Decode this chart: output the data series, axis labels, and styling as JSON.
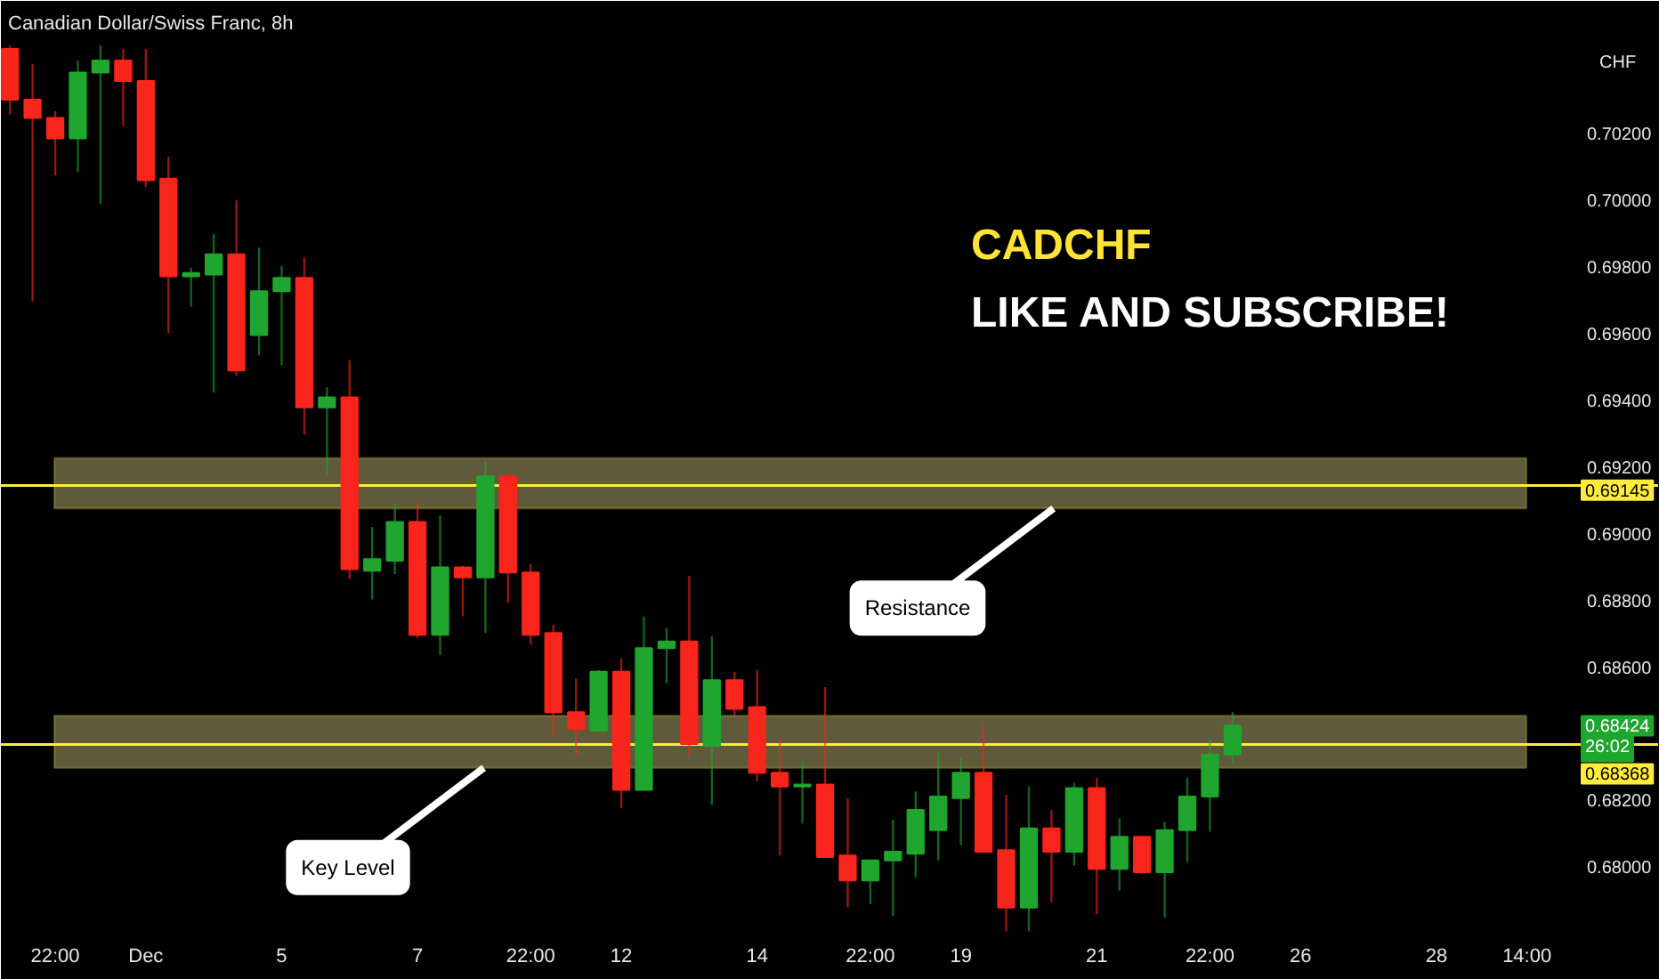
{
  "chart_data": {
    "type": "candlestick",
    "title": "Canadian Dollar/Swiss Franc, 8h",
    "ylabel": "CHF",
    "categories": [
      null,
      null,
      "22:00",
      null,
      null,
      null,
      "Dec",
      null,
      null,
      null,
      null,
      null,
      "5",
      null,
      null,
      null,
      null,
      null,
      "7",
      null,
      null,
      null,
      null,
      "22:00",
      null,
      null,
      null,
      "12",
      null,
      null,
      null,
      null,
      null,
      "14",
      null,
      null,
      null,
      null,
      "22:00",
      null,
      null,
      null,
      "19",
      null,
      null,
      null,
      null,
      null,
      "21",
      null,
      null,
      null,
      null,
      "22:00",
      null,
      null,
      null,
      "26",
      null,
      null,
      null,
      null,
      null,
      "28",
      null,
      null,
      null,
      "14:00"
    ],
    "ohlc": [
      [
        0.70454,
        0.70465,
        0.70257,
        0.70302
      ],
      [
        0.70302,
        0.70409,
        0.69697,
        0.70247
      ],
      [
        0.70247,
        0.70267,
        0.70075,
        0.70186
      ],
      [
        0.70186,
        0.70419,
        0.70085,
        0.70383
      ],
      [
        0.70383,
        0.70465,
        0.69989,
        0.70419
      ],
      [
        0.70419,
        0.70454,
        0.70222,
        0.70358
      ],
      [
        0.70358,
        0.70454,
        0.7004,
        0.7006
      ],
      [
        0.70065,
        0.70131,
        0.69601,
        0.69772
      ],
      [
        0.69772,
        0.69798,
        0.69681,
        0.69782
      ],
      [
        0.69777,
        0.69899,
        0.69424,
        0.69838
      ],
      [
        0.69838,
        0.7,
        0.69474,
        0.6949
      ],
      [
        0.69596,
        0.69858,
        0.69535,
        0.69727
      ],
      [
        0.69727,
        0.69803,
        0.69505,
        0.69767
      ],
      [
        0.69767,
        0.69828,
        0.69298,
        0.69379
      ],
      [
        0.69379,
        0.69439,
        0.69172,
        0.69409
      ],
      [
        0.69409,
        0.6952,
        0.68864,
        0.68894
      ],
      [
        0.68889,
        0.6902,
        0.68803,
        0.68924
      ],
      [
        0.68919,
        0.69091,
        0.68879,
        0.69035
      ],
      [
        0.69035,
        0.69091,
        0.68687,
        0.68697
      ],
      [
        0.68697,
        0.69055,
        0.68636,
        0.68899
      ],
      [
        0.68899,
        0.68904,
        0.68752,
        0.68869
      ],
      [
        0.68869,
        0.69217,
        0.68702,
        0.69172
      ],
      [
        0.69172,
        0.69182,
        0.68793,
        0.68884
      ],
      [
        0.68884,
        0.68909,
        0.68667,
        0.68697
      ],
      [
        0.68702,
        0.68727,
        0.68389,
        0.68465
      ],
      [
        0.68465,
        0.68566,
        0.68333,
        0.68414
      ],
      [
        0.68409,
        0.68591,
        0.68409,
        0.68586
      ],
      [
        0.68586,
        0.68626,
        0.68177,
        0.68232
      ],
      [
        0.68232,
        0.68752,
        0.68232,
        0.68657
      ],
      [
        0.68657,
        0.68717,
        0.68551,
        0.68677
      ],
      [
        0.68677,
        0.68874,
        0.68333,
        0.68369
      ],
      [
        0.68364,
        0.68692,
        0.68187,
        0.68561
      ],
      [
        0.68561,
        0.68586,
        0.68455,
        0.68475
      ],
      [
        0.6848,
        0.68591,
        0.68258,
        0.68283
      ],
      [
        0.68283,
        0.68384,
        0.68035,
        0.68242
      ],
      [
        0.68242,
        0.68313,
        0.68131,
        0.68248
      ],
      [
        0.68248,
        0.6854,
        0.6803,
        0.6803
      ],
      [
        0.68035,
        0.68207,
        0.67879,
        0.6796
      ],
      [
        0.6796,
        0.6802,
        0.67889,
        0.6802
      ],
      [
        0.6802,
        0.68142,
        0.67854,
        0.68046
      ],
      [
        0.6804,
        0.68227,
        0.6797,
        0.68172
      ],
      [
        0.68111,
        0.68343,
        0.6802,
        0.68212
      ],
      [
        0.68207,
        0.68328,
        0.68066,
        0.68283
      ],
      [
        0.68283,
        0.68429,
        0.68046,
        0.68046
      ],
      [
        0.68051,
        0.68217,
        0.67808,
        0.67879
      ],
      [
        0.67879,
        0.68242,
        0.67808,
        0.68116
      ],
      [
        0.68116,
        0.68172,
        0.67894,
        0.68046
      ],
      [
        0.68046,
        0.68253,
        0.68005,
        0.68237
      ],
      [
        0.68237,
        0.68268,
        0.67859,
        0.67995
      ],
      [
        0.67995,
        0.68147,
        0.6793,
        0.68091
      ],
      [
        0.68091,
        0.68091,
        0.6798,
        0.67985
      ],
      [
        0.67985,
        0.68136,
        0.67849,
        0.68111
      ],
      [
        0.68111,
        0.68268,
        0.68015,
        0.68212
      ],
      [
        0.68212,
        0.68384,
        0.68106,
        0.68338
      ],
      [
        0.68338,
        0.68465,
        0.68313,
        0.68424
      ],
      null,
      null,
      null,
      null,
      null,
      null,
      null,
      null,
      null,
      null,
      null,
      null,
      null
    ],
    "colors": [
      "#f7251c",
      "#f7251c",
      "#f7251c",
      "#20a52f",
      "#20a52f",
      "#f7251c",
      "#f7251c",
      "#f7251c",
      "#20a52f",
      "#20a52f",
      "#f7251c",
      "#20a52f",
      "#20a52f",
      "#f7251c",
      "#20a52f",
      "#f7251c",
      "#20a52f",
      "#20a52f",
      "#f7251c",
      "#20a52f",
      "#f7251c",
      "#20a52f",
      "#f7251c",
      "#f7251c",
      "#f7251c",
      "#f7251c",
      "#20a52f",
      "#f7251c",
      "#20a52f",
      "#20a52f",
      "#f7251c",
      "#20a52f",
      "#f7251c",
      "#f7251c",
      "#f7251c",
      "#20a52f",
      "#f7251c",
      "#f7251c",
      "#20a52f",
      "#20a52f",
      "#20a52f",
      "#20a52f",
      "#20a52f",
      "#f7251c",
      "#f7251c",
      "#20a52f",
      "#f7251c",
      "#20a52f",
      "#f7251c",
      "#20a52f",
      "#f7251c",
      "#20a52f",
      "#20a52f",
      "#20a52f",
      "#20a52f",
      null,
      null,
      null,
      null,
      null,
      null,
      null,
      null,
      null,
      null,
      null,
      null,
      null
    ],
    "ylim": [
      0.6779,
      0.7047
    ],
    "yticks": [
      {
        "value": 0.68,
        "label": "0.68000"
      },
      {
        "value": 0.682,
        "label": "0.68200"
      },
      {
        "value": 0.686,
        "label": "0.68600"
      },
      {
        "value": 0.688,
        "label": "0.68800"
      },
      {
        "value": 0.69,
        "label": "0.69000"
      },
      {
        "value": 0.692,
        "label": "0.69200"
      },
      {
        "value": 0.694,
        "label": "0.69400"
      },
      {
        "value": 0.696,
        "label": "0.69600"
      },
      {
        "value": 0.698,
        "label": "0.69800"
      },
      {
        "value": 0.7,
        "label": "0.70000"
      },
      {
        "value": 0.702,
        "label": "0.70200"
      }
    ],
    "ref_lines": [
      {
        "axis": "y",
        "value": 0.69145,
        "label": "0.69145",
        "color": "#ffeb3b"
      },
      {
        "axis": "y",
        "value": 0.68368,
        "label": "0.68368",
        "color": "#ffeb3b"
      }
    ],
    "bands": [
      {
        "axis": "y",
        "from": 0.69076,
        "to": 0.69227,
        "label": "Resistance",
        "color": "#5e5a3a"
      },
      {
        "axis": "y",
        "from": 0.68298,
        "to": 0.68454,
        "label": "Key Level",
        "color": "#5e5a3a"
      }
    ],
    "annotations": [
      "CADCHF",
      "LIKE AND SUBSCRIBE!",
      "0.68424",
      "26:02"
    ]
  }
}
